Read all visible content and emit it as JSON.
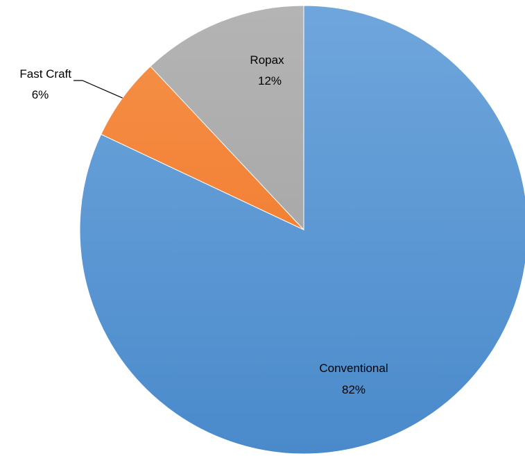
{
  "chart_data": {
    "type": "pie",
    "title": "",
    "start_angle_deg": 0,
    "direction": "clockwise",
    "slices": [
      {
        "name": "Conventional",
        "value": 82,
        "label": "82%",
        "color_top": "#6FA6DC",
        "color_bottom": "#4A8ACB",
        "label_position": "inside"
      },
      {
        "name": "Fast Craft",
        "value": 6,
        "label": "6%",
        "color_top": "#F6924A",
        "color_bottom": "#EE6F1F",
        "label_position": "outside-with-leader"
      },
      {
        "name": "Ropax",
        "value": 12,
        "label": "12%",
        "color_top": "#B4B4B4",
        "color_bottom": "#9E9E9E",
        "label_position": "inside"
      }
    ],
    "legend": "none"
  }
}
